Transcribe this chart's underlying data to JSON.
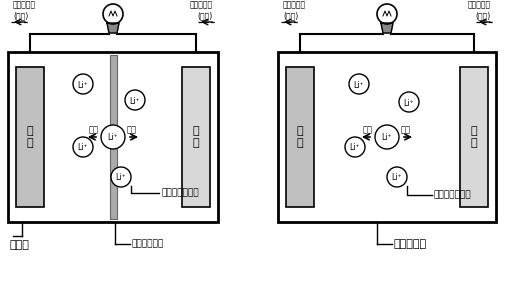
{
  "bg_color": "#ffffff",
  "electrode_color": "#c0c0c0",
  "separator_color": "#aaaaaa",
  "left_title": "電解液",
  "right_title": "固体電解質",
  "label_lithium": "リチウムイオン",
  "label_separator": "セパレーター",
  "label_charge": "充電",
  "label_discharge": "放電",
  "label_neg": "負\n極",
  "label_pos": "正\n極",
  "label_li": "Li⁺",
  "label_edischarge": "電子の流れ\n(放電)",
  "label_echarge": "電子の流れ\n(充電)"
}
